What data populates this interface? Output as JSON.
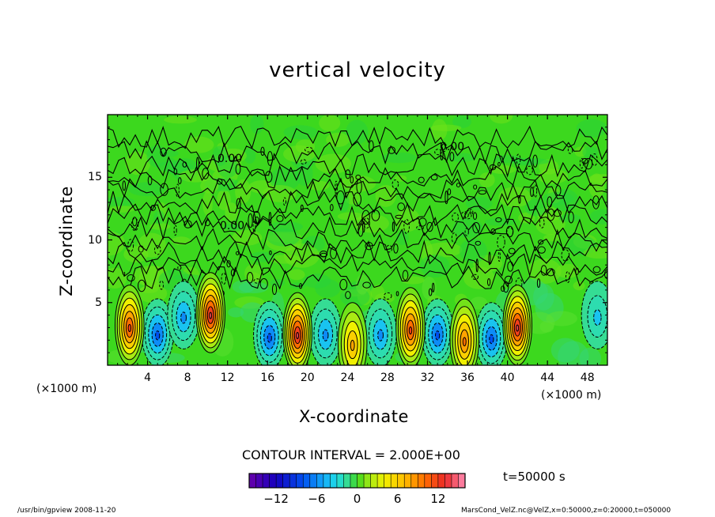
{
  "chart_data": {
    "type": "heatmap",
    "title": "vertical velocity",
    "xlabel": "X-coordinate",
    "ylabel": "Z-coordinate",
    "x_unit_left": "(×1000 m)",
    "x_unit_right": "(×1000 m)",
    "xlim": [
      0,
      50
    ],
    "ylim": [
      0,
      20
    ],
    "x_ticks": [
      4,
      8,
      12,
      16,
      20,
      24,
      28,
      32,
      36,
      40,
      44,
      48
    ],
    "y_ticks": [
      5,
      10,
      15
    ],
    "contour_interval_text": "CONTOUR INTERVAL = 2.000E+00",
    "contour_label": "0.00",
    "colorbar": {
      "range": [
        -16,
        16
      ],
      "ticks": [
        -12,
        -6,
        0,
        6,
        12
      ],
      "tick_labels": [
        "−12",
        "−6",
        "0",
        "6",
        "12"
      ]
    },
    "updrafts": [
      {
        "x": 2.2,
        "z": 3.2,
        "peak": 12
      },
      {
        "x": 10.3,
        "z": 4.2,
        "peak": 14
      },
      {
        "x": 19.0,
        "z": 2.6,
        "peak": 13
      },
      {
        "x": 24.5,
        "z": 1.8,
        "peak": 8
      },
      {
        "x": 30.3,
        "z": 3.0,
        "peak": 12
      },
      {
        "x": 35.7,
        "z": 2.1,
        "peak": 9
      },
      {
        "x": 41.0,
        "z": 3.2,
        "peak": 13
      }
    ],
    "downdrafts": [
      {
        "x": 5.0,
        "z": 2.6,
        "peak": -7
      },
      {
        "x": 7.6,
        "z": 4.0,
        "peak": -5
      },
      {
        "x": 16.2,
        "z": 2.4,
        "peak": -8
      },
      {
        "x": 21.8,
        "z": 2.6,
        "peak": -6
      },
      {
        "x": 27.3,
        "z": 2.6,
        "peak": -6
      },
      {
        "x": 33.0,
        "z": 2.6,
        "peak": -8
      },
      {
        "x": 38.4,
        "z": 2.3,
        "peak": -7
      },
      {
        "x": 49.0,
        "z": 4.0,
        "peak": -4
      }
    ],
    "time_label": "t=50000 s"
  },
  "footer": {
    "left": "/usr/bin/gpview  2008-11-20",
    "right": "MarsCond_VelZ.nc@VelZ,x=0:50000,z=0:20000,t=050000"
  }
}
